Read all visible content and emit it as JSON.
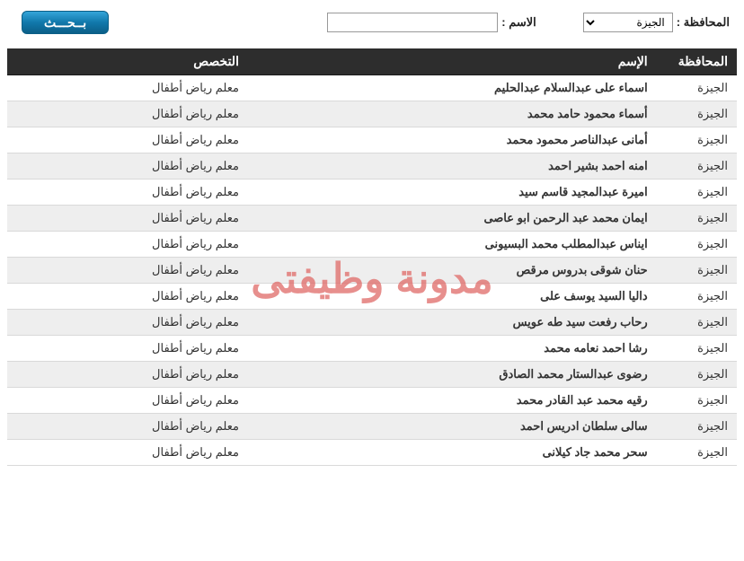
{
  "filter": {
    "governorate_label": "المحافظة :",
    "governorate_selected": "الجيزة",
    "name_label": "الاسم :",
    "name_value": "",
    "search_button": "بــحـــث"
  },
  "columns": {
    "gov": "المحافظة",
    "name": "الإسم",
    "spec": "التخصص"
  },
  "watermark": "مدونة وظيفتى",
  "rows": [
    {
      "gov": "الجيزة",
      "name": "اسماء على عبدالسلام عبدالحليم",
      "spec": "معلم رياض أطفال"
    },
    {
      "gov": "الجيزة",
      "name": "أسماء محمود حامد محمد",
      "spec": "معلم رياض أطفال"
    },
    {
      "gov": "الجيزة",
      "name": "أمانى عبدالناصر محمود محمد",
      "spec": "معلم رياض أطفال"
    },
    {
      "gov": "الجيزة",
      "name": "امنه احمد بشير احمد",
      "spec": "معلم رياض أطفال"
    },
    {
      "gov": "الجيزة",
      "name": "اميرة عبدالمجيد قاسم سيد",
      "spec": "معلم رياض أطفال"
    },
    {
      "gov": "الجيزة",
      "name": "ايمان محمد عبد الرحمن ابو عاصى",
      "spec": "معلم رياض أطفال"
    },
    {
      "gov": "الجيزة",
      "name": "ايناس عبدالمطلب محمد البسيونى",
      "spec": "معلم رياض أطفال"
    },
    {
      "gov": "الجيزة",
      "name": "حنان شوقى بدروس مرقص",
      "spec": "معلم رياض أطفال"
    },
    {
      "gov": "الجيزة",
      "name": "داليا السيد يوسف على",
      "spec": "معلم رياض أطفال"
    },
    {
      "gov": "الجيزة",
      "name": "رحاب رفعت سيد طه عويس",
      "spec": "معلم رياض أطفال"
    },
    {
      "gov": "الجيزة",
      "name": "رشا احمد نعامه محمد",
      "spec": "معلم رياض أطفال"
    },
    {
      "gov": "الجيزة",
      "name": "رضوى عبدالستار محمد الصادق",
      "spec": "معلم رياض أطفال"
    },
    {
      "gov": "الجيزة",
      "name": "رقيه محمد عبد القادر محمد",
      "spec": "معلم رياض أطفال"
    },
    {
      "gov": "الجيزة",
      "name": "سالى سلطان ادريس احمد",
      "spec": "معلم رياض أطفال"
    },
    {
      "gov": "الجيزة",
      "name": "سحر محمد جاد كيلانى",
      "spec": "معلم رياض أطفال"
    }
  ]
}
